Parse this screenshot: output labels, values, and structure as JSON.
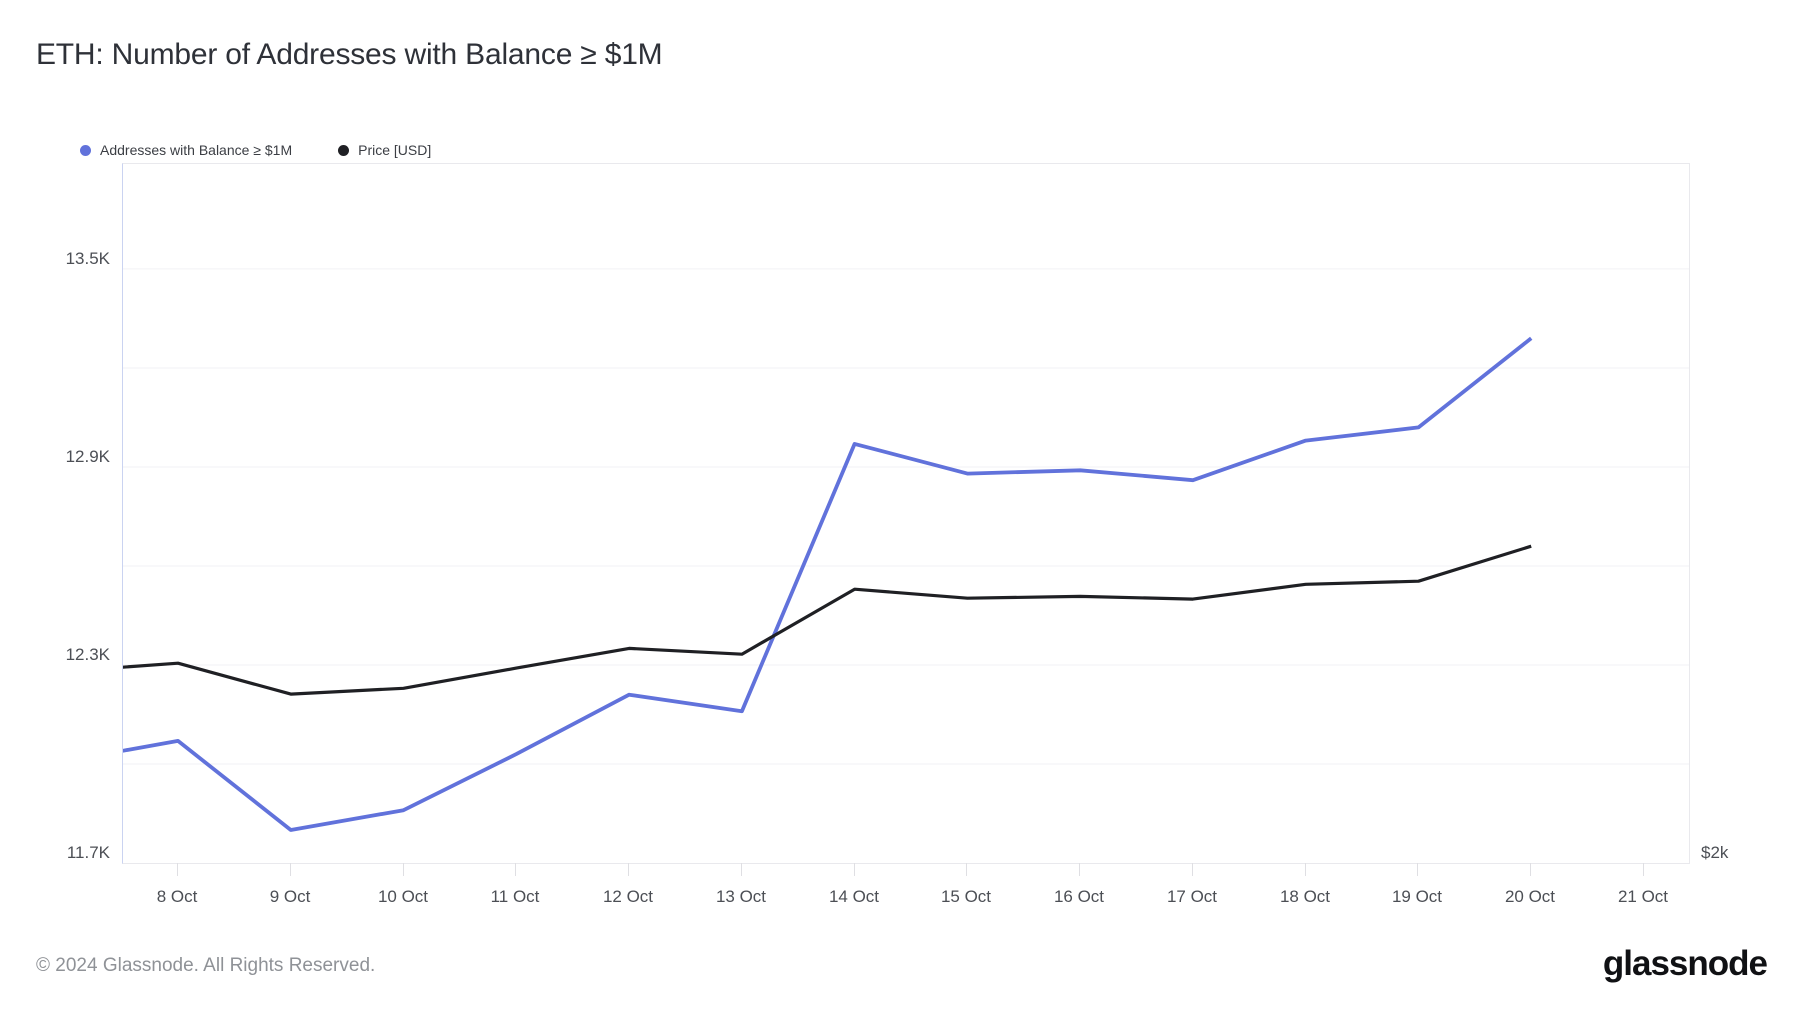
{
  "title": "ETH: Number of Addresses with Balance ≥ $1M",
  "legend": {
    "items": [
      {
        "label": "Addresses with Balance ≥ $1M",
        "color": "#6172db",
        "marker": "circle"
      },
      {
        "label": "Price [USD]",
        "color": "#1f2024",
        "marker": "circle"
      }
    ]
  },
  "footer": {
    "copyright": "© 2024 Glassnode. All Rights Reserved.",
    "brand": "glassnode"
  },
  "chart_data": {
    "type": "line",
    "title": "ETH: Number of Addresses with Balance ≥ $1M",
    "grid": "horizontal gridlines only",
    "legend_position": "top-left",
    "x_axis": {
      "tick_labels": [
        "8 Oct",
        "9 Oct",
        "10 Oct",
        "11 Oct",
        "12 Oct",
        "13 Oct",
        "14 Oct",
        "15 Oct",
        "16 Oct",
        "17 Oct",
        "18 Oct",
        "19 Oct",
        "20 Oct",
        "21 Oct"
      ],
      "note": "day_offsets are days after 8 Oct; series are clipped at the left plot edge (offset -0.49); no data after 20 Oct"
    },
    "y_axis_left": {
      "tick_labels": [
        "13.5K",
        "12.9K",
        "12.3K",
        "11.7K"
      ],
      "tick_values": [
        13.5,
        12.9,
        12.3,
        11.7
      ],
      "gridline_values": [
        13.5,
        13.2,
        12.9,
        12.6,
        12.3,
        12.0
      ],
      "range_at_plot_edges": [
        11.7,
        13.818
      ],
      "unit": "thousand addresses"
    },
    "y_axis_right": {
      "tick_labels": [
        "$2k"
      ],
      "tick_values": [
        2000
      ],
      "range_at_plot_edges": [
        2000,
        3560
      ],
      "unit": "USD"
    },
    "series": [
      {
        "name": "Addresses with Balance ≥ $1M",
        "axis": "left",
        "color": "#6172db",
        "stroke_width": 3.8,
        "day_offsets": [
          -0.49,
          0,
          1,
          2,
          3,
          4,
          5,
          6,
          7,
          8,
          9,
          10,
          11,
          12
        ],
        "values": [
          12.04,
          12.07,
          11.8,
          11.86,
          12.03,
          12.21,
          12.16,
          12.97,
          12.88,
          12.89,
          12.86,
          12.98,
          13.02,
          13.29
        ]
      },
      {
        "name": "Price [USD]",
        "axis": "right",
        "color": "#1f2024",
        "stroke_width": 3.2,
        "day_offsets": [
          -0.49,
          0,
          1,
          2,
          3,
          4,
          5,
          6,
          7,
          8,
          9,
          10,
          11,
          12
        ],
        "values": [
          2437,
          2446,
          2377,
          2390,
          2435,
          2479,
          2466,
          2611,
          2591,
          2595,
          2589,
          2622,
          2629,
          2707
        ]
      }
    ]
  }
}
